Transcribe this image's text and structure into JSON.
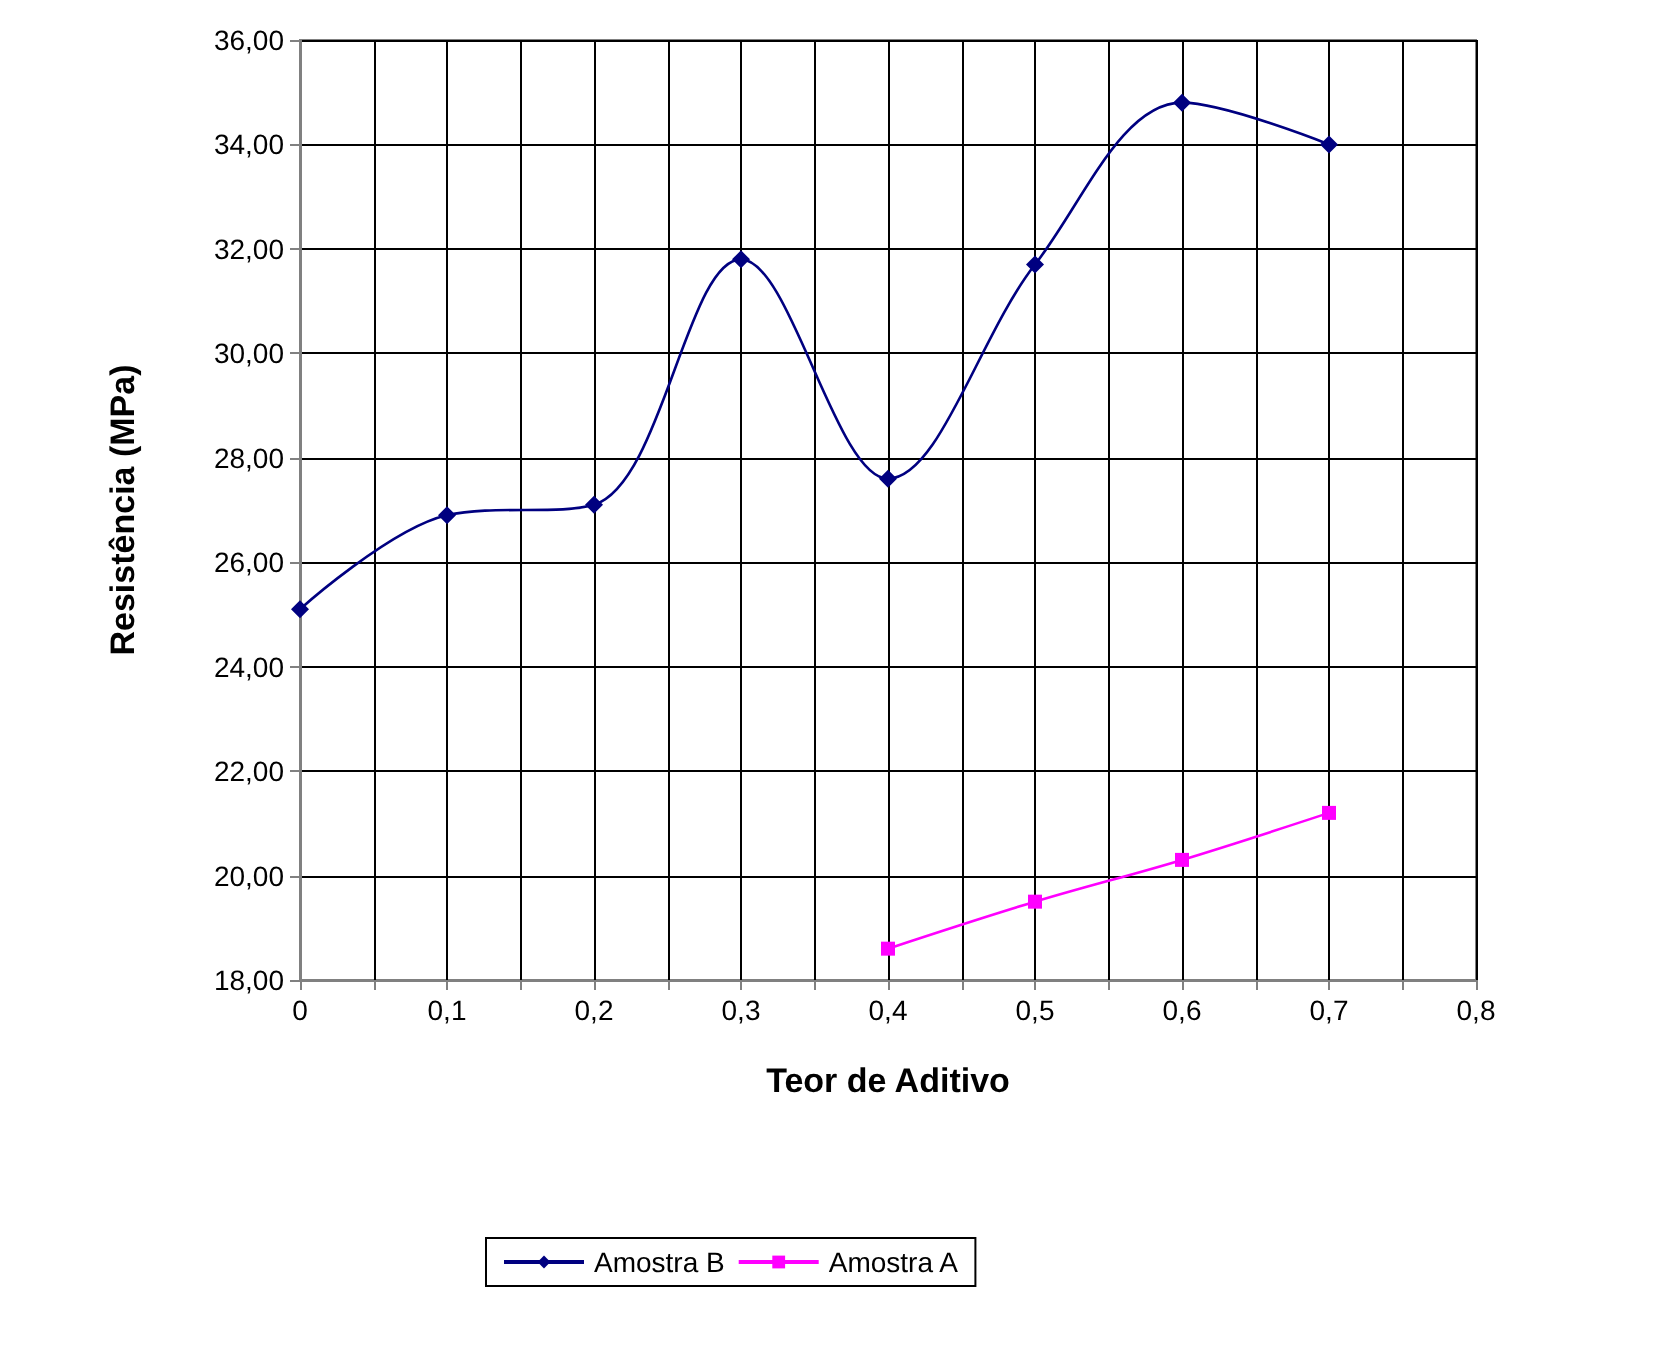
{
  "chart_data": {
    "type": "line",
    "xlabel": "Teor de Aditivo",
    "ylabel": "Resistência (MPa)",
    "xlim": [
      0,
      0.8
    ],
    "xticks": [
      {
        "value": 0,
        "label": "0"
      },
      {
        "value": 0.05,
        "label": null
      },
      {
        "value": 0.1,
        "label": "0,1"
      },
      {
        "value": 0.15,
        "label": null
      },
      {
        "value": 0.2,
        "label": "0,2"
      },
      {
        "value": 0.25,
        "label": null
      },
      {
        "value": 0.3,
        "label": "0,3"
      },
      {
        "value": 0.35,
        "label": null
      },
      {
        "value": 0.4,
        "label": "0,4"
      },
      {
        "value": 0.45,
        "label": null
      },
      {
        "value": 0.5,
        "label": "0,5"
      },
      {
        "value": 0.55,
        "label": null
      },
      {
        "value": 0.6,
        "label": "0,6"
      },
      {
        "value": 0.65,
        "label": null
      },
      {
        "value": 0.7,
        "label": "0,7"
      },
      {
        "value": 0.75,
        "label": null
      },
      {
        "value": 0.8,
        "label": "0,8"
      }
    ],
    "ylim": [
      18,
      36
    ],
    "yticks": [
      {
        "value": 18,
        "label": "18,00"
      },
      {
        "value": 20,
        "label": "20,00"
      },
      {
        "value": 22,
        "label": "22,00"
      },
      {
        "value": 24,
        "label": "24,00"
      },
      {
        "value": 26,
        "label": "26,00"
      },
      {
        "value": 28,
        "label": "28,00"
      },
      {
        "value": 30,
        "label": "30,00"
      },
      {
        "value": 32,
        "label": "32,00"
      },
      {
        "value": 34,
        "label": "34,00"
      },
      {
        "value": 36,
        "label": "36,00"
      }
    ],
    "grid": true,
    "legend": "bottom",
    "series": [
      {
        "name": "Amostra B",
        "color": "#000080",
        "marker": "diamond",
        "x": [
          0,
          0.1,
          0.2,
          0.3,
          0.4,
          0.5,
          0.6,
          0.7
        ],
        "values": [
          25.1,
          26.9,
          27.1,
          31.8,
          27.6,
          31.7,
          34.8,
          34.0
        ]
      },
      {
        "name": "Amostra A",
        "color": "#ff00ff",
        "marker": "square",
        "x": [
          0.4,
          0.5,
          0.6,
          0.7
        ],
        "values": [
          18.6,
          19.5,
          20.3,
          21.2
        ]
      }
    ]
  }
}
